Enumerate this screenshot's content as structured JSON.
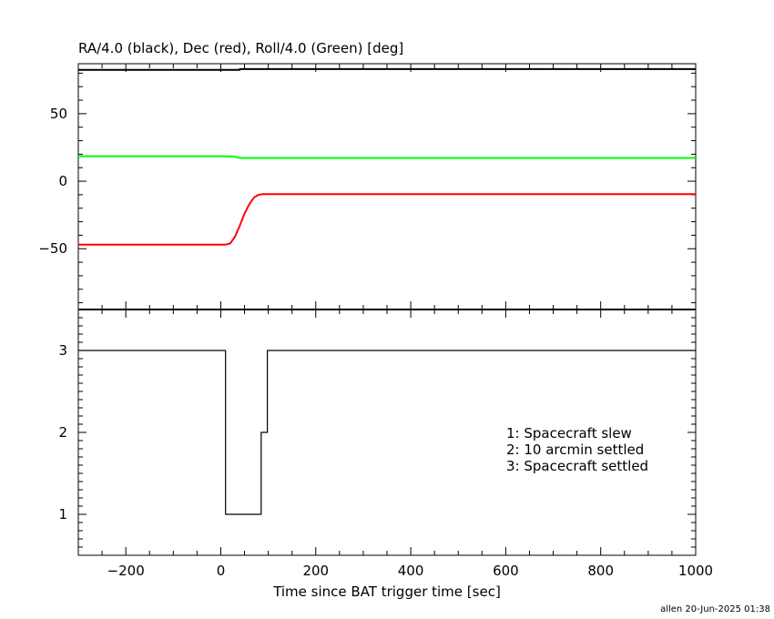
{
  "chart_data": [
    {
      "type": "line",
      "title": "RA/4.0 (black), Dec (red), Roll/4.0 (Green) [deg]",
      "xlim": [
        -300,
        1000
      ],
      "ylim": [
        -95,
        87
      ],
      "yticks": [
        -50,
        0,
        50
      ],
      "ytick_labels": [
        "−50",
        "0",
        "50"
      ],
      "grid": false,
      "series": [
        {
          "color": "#000000",
          "x": [
            -300,
            40,
            40,
            1000
          ],
          "y": [
            82.5,
            82.5,
            83.0,
            83.0
          ]
        },
        {
          "color": "#ff0000",
          "x": [
            -300,
            10,
            20,
            30,
            40,
            50,
            60,
            70,
            80,
            90,
            1000
          ],
          "y": [
            -47,
            -47,
            -46,
            -41,
            -33,
            -24,
            -17,
            -12,
            -10,
            -9.5,
            -9.5
          ]
        },
        {
          "color": "#00ff00",
          "x": [
            -300,
            10,
            30,
            40,
            1000
          ],
          "y": [
            18.5,
            18.5,
            18.2,
            17.2,
            17.2
          ]
        }
      ]
    },
    {
      "type": "line",
      "xlabel": "Time since BAT trigger time [sec]",
      "xlim": [
        -300,
        1000
      ],
      "ylim": [
        0.5,
        3.5
      ],
      "xticks": [
        -200,
        0,
        200,
        400,
        600,
        800,
        1000
      ],
      "xtick_labels": [
        "−200",
        "0",
        "200",
        "400",
        "600",
        "800",
        "1000"
      ],
      "yticks": [
        1,
        2,
        3
      ],
      "ytick_labels": [
        "1",
        "2",
        "3"
      ],
      "grid": false,
      "series": [
        {
          "color": "#000000",
          "step": true,
          "x": [
            -300,
            10,
            10,
            85,
            85,
            98,
            98,
            1000
          ],
          "y": [
            3,
            3,
            1,
            1,
            2,
            2,
            3,
            3
          ]
        }
      ],
      "annotations": [
        "1: Spacecraft slew",
        "2: 10 arcmin settled",
        "3: Spacecraft settled"
      ]
    }
  ],
  "footer": "allen 20-Jun-2025 01:38"
}
